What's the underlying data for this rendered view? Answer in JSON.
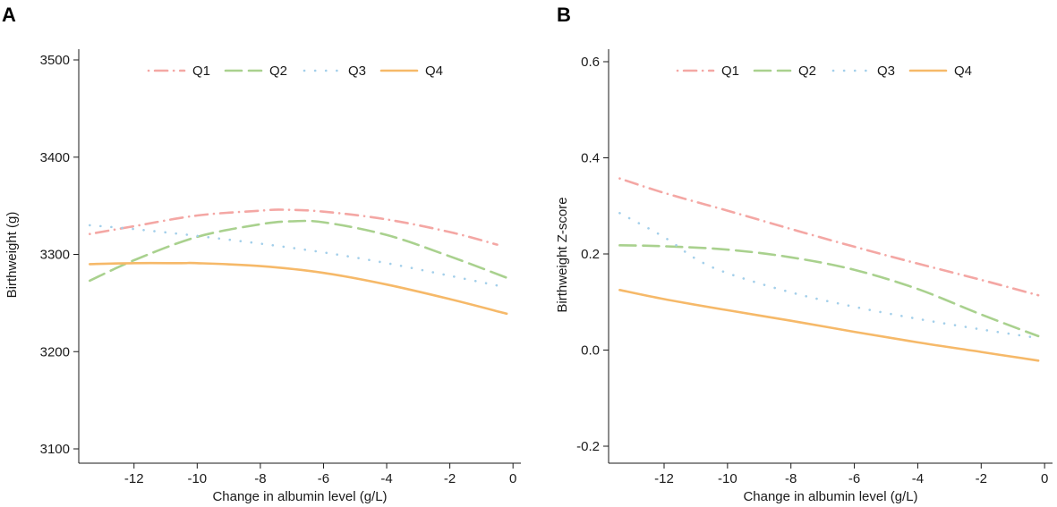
{
  "chart_data": [
    {
      "panel": "A",
      "type": "line",
      "title": "",
      "xlabel": "Change in albumin level (g/L)",
      "ylabel": "Birthweight (g)",
      "xlim": [
        -13.5,
        0
      ],
      "ylim": [
        3100,
        3500
      ],
      "xticks": [
        -12,
        -10,
        -8,
        -6,
        -4,
        -2,
        0
      ],
      "yticks": [
        3100,
        3200,
        3300,
        3400,
        3500
      ],
      "xtick_labels": [
        "-12",
        "-10",
        "-8",
        "-6",
        "-4",
        "-2",
        "0"
      ],
      "ytick_labels": [
        "3100",
        "3200",
        "3300",
        "3400",
        "3500"
      ],
      "legend": [
        "Q1",
        "Q2",
        "Q3",
        "Q4"
      ],
      "legend_position": "top-center",
      "grid": false,
      "series": [
        {
          "name": "Q1",
          "color": "#F4A7A4",
          "style": "dashdot",
          "x": [
            -13.4,
            -12,
            -10,
            -8,
            -7.3,
            -6,
            -4,
            -2,
            -0.5
          ],
          "y": [
            3321,
            3329,
            3340,
            3345,
            3346,
            3344,
            3336,
            3323,
            3310
          ]
        },
        {
          "name": "Q2",
          "color": "#A9D18E",
          "style": "dashed",
          "x": [
            -13.4,
            -12,
            -10,
            -8,
            -7,
            -6,
            -4,
            -2,
            -0.2
          ],
          "y": [
            3273,
            3294,
            3318,
            3331,
            3334,
            3333,
            3320,
            3298,
            3276
          ]
        },
        {
          "name": "Q3",
          "color": "#A3CFEA",
          "style": "dotted",
          "x": [
            -13.4,
            -12,
            -10,
            -8,
            -6,
            -4,
            -2,
            -0.2
          ],
          "y": [
            3330,
            3326,
            3319,
            3311,
            3302,
            3291,
            3278,
            3266
          ]
        },
        {
          "name": "Q4",
          "color": "#F6B969",
          "style": "solid",
          "x": [
            -13.4,
            -12,
            -10.5,
            -10,
            -8,
            -6,
            -4,
            -2,
            -0.2
          ],
          "y": [
            3290,
            3291,
            3291,
            3291,
            3288,
            3281,
            3269,
            3254,
            3239
          ]
        }
      ]
    },
    {
      "panel": "B",
      "type": "line",
      "title": "",
      "xlabel": "Change in albumin level (g/L)",
      "ylabel": "Birthweight Z-score",
      "xlim": [
        -13.5,
        0
      ],
      "ylim": [
        -0.24,
        0.62
      ],
      "xticks": [
        -12,
        -10,
        -8,
        -6,
        -4,
        -2,
        0
      ],
      "yticks": [
        -0.2,
        0.0,
        0.2,
        0.4,
        0.6
      ],
      "xtick_labels": [
        "-12",
        "-10",
        "-8",
        "-6",
        "-4",
        "-2",
        "0"
      ],
      "ytick_labels": [
        "-0.2",
        "0.0",
        "0.2",
        "0.4",
        "0.6"
      ],
      "legend": [
        "Q1",
        "Q2",
        "Q3",
        "Q4"
      ],
      "legend_position": "top-center",
      "grid": false,
      "series": [
        {
          "name": "Q1",
          "color": "#F4A7A4",
          "style": "dashdot",
          "x": [
            -13.4,
            -12,
            -10,
            -8,
            -6,
            -4,
            -2,
            -0.2
          ],
          "y": [
            0.357,
            0.327,
            0.29,
            0.252,
            0.215,
            0.18,
            0.146,
            0.114
          ]
        },
        {
          "name": "Q2",
          "color": "#A9D18E",
          "style": "dashed",
          "x": [
            -13.4,
            -12,
            -10,
            -8,
            -6,
            -4,
            -2,
            -0.2
          ],
          "y": [
            0.218,
            0.216,
            0.209,
            0.193,
            0.167,
            0.127,
            0.074,
            0.029
          ]
        },
        {
          "name": "Q3",
          "color": "#A3CFEA",
          "style": "dotted",
          "x": [
            -13.4,
            -12,
            -11,
            -10,
            -8,
            -6,
            -4,
            -2,
            -0.2
          ],
          "y": [
            0.285,
            0.235,
            0.19,
            0.16,
            0.12,
            0.09,
            0.065,
            0.043,
            0.025
          ]
        },
        {
          "name": "Q4",
          "color": "#F6B969",
          "style": "solid",
          "x": [
            -13.4,
            -12,
            -10,
            -8,
            -6,
            -4,
            -2,
            -0.2
          ],
          "y": [
            0.125,
            0.106,
            0.083,
            0.061,
            0.038,
            0.016,
            -0.004,
            -0.022
          ]
        }
      ]
    }
  ]
}
